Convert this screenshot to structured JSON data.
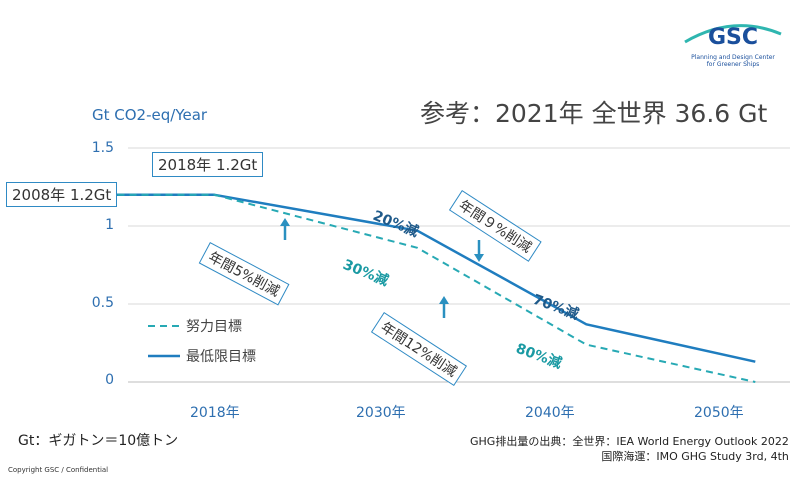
{
  "reference_text": "参考：2021年 全世界 36.6 Gt",
  "logo": {
    "text": "GSC",
    "subtitle_line1": "Planning and Design Center",
    "subtitle_line2": "for Greener Ships"
  },
  "unit_label": "Gt CO2-eq/Year",
  "callouts": {
    "y2008": "2008年 1.2Gt",
    "y2018": "2018年 1.2Gt",
    "rate5": "年間5%削減",
    "rate9": "年間９%削減",
    "rate12": "年間12%削減"
  },
  "reduction_labels": {
    "r20": "20%減",
    "r30": "30%減",
    "r70": "70%減",
    "r80": "80%減"
  },
  "legend": {
    "effort": "努力目標",
    "minimum": "最低限目標"
  },
  "footnote": "Gt：ギガトン＝10億トン",
  "source_line1": "GHG排出量の出典：全世界：IEA World Energy Outlook 2022",
  "source_line2": "国際海運：IMO GHG Study 3rd, 4th",
  "copyright": "Copyright GSC / Confidential",
  "colors": {
    "solid_line": "#1f7dbf",
    "dashed_line": "#27a9b4",
    "label_dark": "#1f5a8a",
    "label_teal": "#1a9aa3",
    "arrow": "#2a90c0",
    "axis_text": "#2e6fb0"
  },
  "chart_data": {
    "type": "line",
    "title": "",
    "ylabel": "Gt CO2-eq/Year",
    "ylim": [
      0,
      1.5
    ],
    "yticks": [
      "0",
      "0.5",
      "1",
      "1.5"
    ],
    "categories": [
      "2018年",
      "2030年",
      "2040年",
      "2050年"
    ],
    "grid": true,
    "legend_placement": "bottom-left",
    "series": [
      {
        "name": "最低限目標",
        "style": "solid",
        "x": [
          2008,
          2018,
          2030,
          2040,
          2050
        ],
        "y": [
          1.2,
          1.2,
          0.97,
          0.37,
          0.13
        ]
      },
      {
        "name": "努力目標",
        "style": "dashed",
        "x": [
          2008,
          2018,
          2030,
          2040,
          2050
        ],
        "y": [
          1.2,
          1.2,
          0.86,
          0.24,
          0.0
        ]
      }
    ]
  }
}
